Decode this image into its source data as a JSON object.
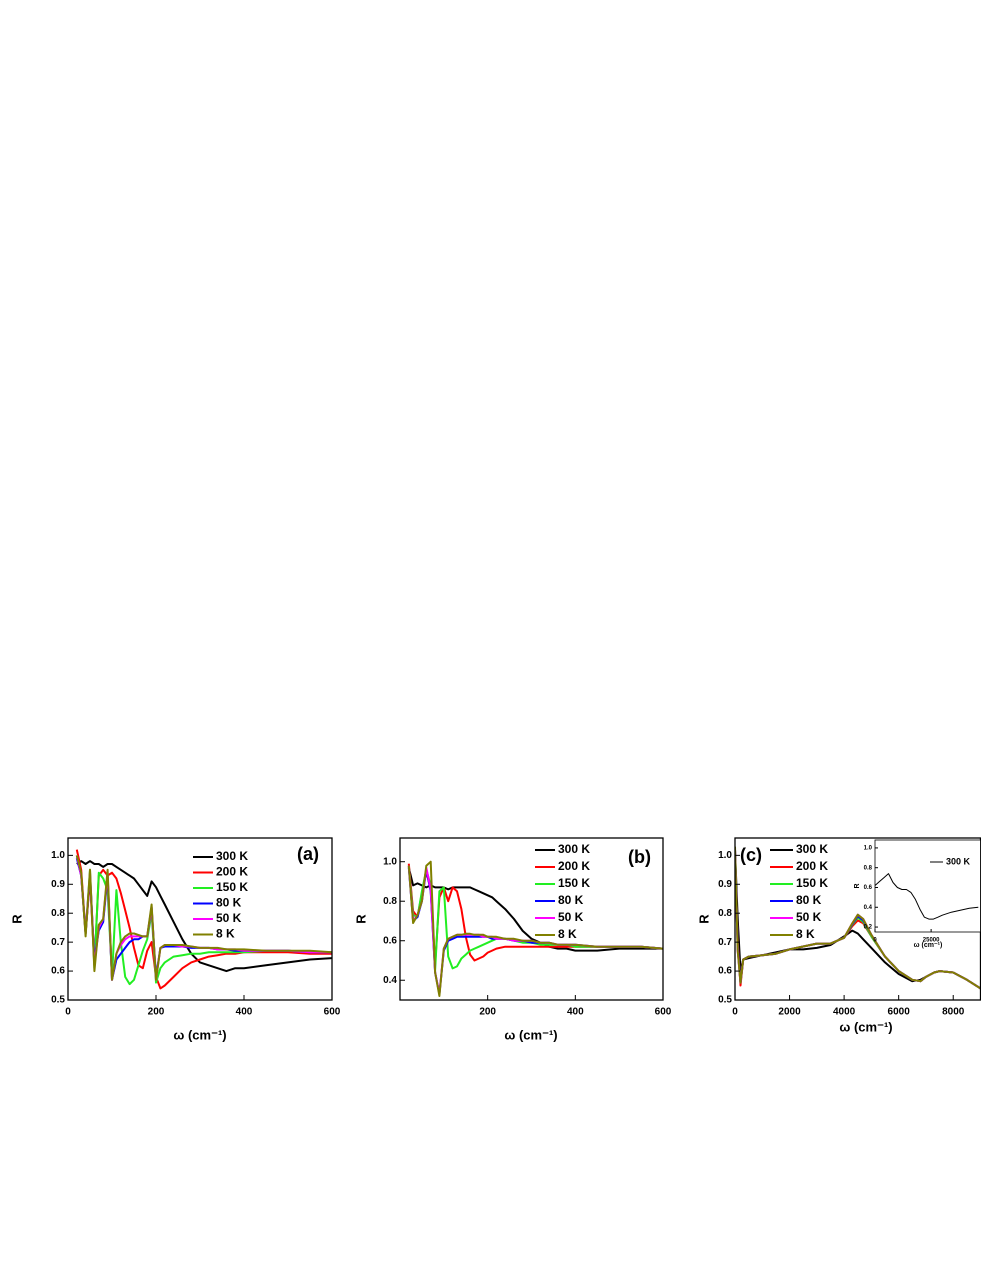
{
  "chart_data": [
    {
      "type": "line",
      "label": "(a)",
      "x_label": "ω (cm⁻¹)",
      "y_label": "R",
      "x": [
        20,
        30,
        40,
        50,
        60,
        70,
        80,
        90,
        100,
        110,
        120,
        130,
        140,
        150,
        160,
        170,
        180,
        190,
        200,
        210,
        220,
        240,
        260,
        280,
        300,
        320,
        340,
        360,
        380,
        400,
        450,
        500,
        550,
        600
      ],
      "series": [
        {
          "name": "300 K",
          "color": "#000000",
          "values": [
            0.97,
            0.98,
            0.97,
            0.98,
            0.97,
            0.97,
            0.96,
            0.97,
            0.97,
            0.96,
            0.95,
            0.94,
            0.93,
            0.92,
            0.9,
            0.88,
            0.86,
            0.91,
            0.89,
            0.86,
            0.83,
            0.77,
            0.71,
            0.66,
            0.63,
            0.62,
            0.61,
            0.6,
            0.61,
            0.61,
            0.62,
            0.63,
            0.64,
            0.645
          ]
        },
        {
          "name": "200 K",
          "color": "#ff0000",
          "values": [
            1.02,
            0.95,
            0.73,
            0.92,
            0.62,
            0.93,
            0.95,
            0.93,
            0.94,
            0.92,
            0.87,
            0.81,
            0.75,
            0.68,
            0.62,
            0.61,
            0.67,
            0.7,
            0.58,
            0.54,
            0.55,
            0.58,
            0.61,
            0.63,
            0.64,
            0.65,
            0.655,
            0.66,
            0.66,
            0.665,
            0.665,
            0.665,
            0.66,
            0.66
          ]
        },
        {
          "name": "150 K",
          "color": "#22ee22",
          "values": [
            1.0,
            0.93,
            0.73,
            0.95,
            0.61,
            0.94,
            0.92,
            0.88,
            0.58,
            0.88,
            0.7,
            0.58,
            0.555,
            0.57,
            0.62,
            0.67,
            0.71,
            0.8,
            0.56,
            0.61,
            0.63,
            0.65,
            0.655,
            0.66,
            0.66,
            0.665,
            0.665,
            0.665,
            0.665,
            0.665,
            0.67,
            0.67,
            0.665,
            0.665
          ]
        },
        {
          "name": "80 K",
          "color": "#0000ff",
          "values": [
            0.99,
            0.93,
            0.73,
            0.93,
            0.64,
            0.74,
            0.77,
            0.93,
            0.57,
            0.64,
            0.66,
            0.68,
            0.7,
            0.71,
            0.71,
            0.72,
            0.72,
            0.82,
            0.58,
            0.68,
            0.685,
            0.685,
            0.685,
            0.68,
            0.68,
            0.68,
            0.675,
            0.675,
            0.67,
            0.67,
            0.67,
            0.67,
            0.665,
            0.665
          ]
        },
        {
          "name": "50 K",
          "color": "#ff00ff",
          "values": [
            1.0,
            0.93,
            0.73,
            0.94,
            0.62,
            0.75,
            0.78,
            0.94,
            0.57,
            0.66,
            0.69,
            0.71,
            0.72,
            0.72,
            0.72,
            0.72,
            0.72,
            0.82,
            0.57,
            0.68,
            0.69,
            0.69,
            0.685,
            0.685,
            0.68,
            0.68,
            0.675,
            0.675,
            0.675,
            0.67,
            0.67,
            0.67,
            0.665,
            0.665
          ]
        },
        {
          "name": "8 K",
          "color": "#808000",
          "values": [
            1.0,
            0.94,
            0.72,
            0.95,
            0.6,
            0.76,
            0.78,
            0.95,
            0.57,
            0.66,
            0.7,
            0.72,
            0.73,
            0.73,
            0.725,
            0.72,
            0.72,
            0.83,
            0.57,
            0.68,
            0.69,
            0.69,
            0.69,
            0.685,
            0.68,
            0.68,
            0.68,
            0.675,
            0.675,
            0.675,
            0.67,
            0.67,
            0.67,
            0.665
          ]
        }
      ],
      "xlim": [
        0,
        600
      ],
      "ylim": [
        0.5,
        1.06
      ],
      "xticks": [
        0,
        200,
        400,
        600
      ],
      "yticks": [
        0.5,
        0.6,
        0.7,
        0.8,
        0.9,
        {
          "value": 1,
          "label": "1.0"
        }
      ]
    },
    {
      "type": "line",
      "label": "(b)",
      "x_label": "ω (cm⁻¹)",
      "y_label": "R",
      "x": [
        20,
        30,
        40,
        50,
        60,
        70,
        80,
        90,
        100,
        110,
        120,
        130,
        140,
        150,
        160,
        170,
        180,
        190,
        200,
        210,
        220,
        240,
        260,
        280,
        300,
        320,
        340,
        360,
        380,
        400,
        450,
        500,
        550,
        600
      ],
      "series": [
        {
          "name": "300 K",
          "color": "#000000",
          "values": [
            0.97,
            0.88,
            0.89,
            0.88,
            0.87,
            0.88,
            0.87,
            0.87,
            0.87,
            0.86,
            0.87,
            0.87,
            0.87,
            0.87,
            0.87,
            0.86,
            0.85,
            0.84,
            0.83,
            0.82,
            0.8,
            0.76,
            0.71,
            0.65,
            0.61,
            0.59,
            0.57,
            0.56,
            0.56,
            0.55,
            0.55,
            0.56,
            0.56,
            0.56
          ]
        },
        {
          "name": "200 K",
          "color": "#ff0000",
          "values": [
            0.99,
            0.75,
            0.72,
            0.84,
            0.95,
            0.86,
            0.48,
            0.82,
            0.87,
            0.8,
            0.87,
            0.85,
            0.76,
            0.62,
            0.53,
            0.5,
            0.51,
            0.52,
            0.54,
            0.55,
            0.56,
            0.57,
            0.57,
            0.57,
            0.57,
            0.57,
            0.57,
            0.57,
            0.57,
            0.57,
            0.57,
            0.57,
            0.57,
            0.56
          ]
        },
        {
          "name": "150 K",
          "color": "#22ee22",
          "values": [
            0.98,
            0.73,
            0.72,
            0.85,
            0.96,
            0.88,
            0.45,
            0.85,
            0.87,
            0.52,
            0.46,
            0.47,
            0.51,
            0.53,
            0.55,
            0.56,
            0.57,
            0.58,
            0.59,
            0.6,
            0.61,
            0.61,
            0.6,
            0.59,
            0.59,
            0.58,
            0.58,
            0.58,
            0.58,
            0.57,
            0.57,
            0.57,
            0.57,
            0.56
          ]
        },
        {
          "name": "80 K",
          "color": "#0000ff",
          "values": [
            0.97,
            0.7,
            0.72,
            0.8,
            0.96,
            0.85,
            0.44,
            0.33,
            0.55,
            0.6,
            0.61,
            0.62,
            0.62,
            0.62,
            0.62,
            0.62,
            0.62,
            0.62,
            0.62,
            0.61,
            0.61,
            0.61,
            0.6,
            0.6,
            0.59,
            0.59,
            0.59,
            0.58,
            0.58,
            0.58,
            0.57,
            0.57,
            0.57,
            0.56
          ]
        },
        {
          "name": "50 K",
          "color": "#ff00ff",
          "values": [
            0.98,
            0.7,
            0.73,
            0.8,
            0.97,
            0.86,
            0.44,
            0.33,
            0.56,
            0.61,
            0.62,
            0.63,
            0.63,
            0.63,
            0.63,
            0.63,
            0.63,
            0.62,
            0.62,
            0.62,
            0.61,
            0.61,
            0.6,
            0.6,
            0.6,
            0.59,
            0.59,
            0.58,
            0.58,
            0.58,
            0.57,
            0.57,
            0.57,
            0.56
          ]
        },
        {
          "name": "8 K",
          "color": "#808000",
          "values": [
            0.98,
            0.69,
            0.73,
            0.8,
            0.98,
            1.0,
            0.44,
            0.32,
            0.56,
            0.61,
            0.62,
            0.63,
            0.63,
            0.635,
            0.635,
            0.63,
            0.63,
            0.63,
            0.62,
            0.62,
            0.62,
            0.61,
            0.61,
            0.6,
            0.6,
            0.59,
            0.59,
            0.58,
            0.58,
            0.58,
            0.57,
            0.57,
            0.57,
            0.56
          ]
        }
      ],
      "xlim": [
        0,
        600
      ],
      "ylim": [
        0.3,
        1.12
      ],
      "xticks": [
        200,
        400,
        600
      ],
      "yticks": [
        0.4,
        0.6,
        0.8,
        {
          "value": 1,
          "label": "1.0"
        }
      ]
    },
    {
      "type": "line",
      "label": "(c)",
      "x_label": "ω (cm⁻¹)",
      "y_label": "R",
      "x": [
        0,
        100,
        200,
        300,
        500,
        1000,
        1500,
        2000,
        2500,
        3000,
        3500,
        4000,
        4300,
        4500,
        4700,
        5000,
        5500,
        6000,
        6500,
        6800,
        7000,
        7300,
        7500,
        8000,
        8500,
        9000
      ],
      "series": [
        {
          "name": "300 K",
          "color": "#000000",
          "values": [
            1.02,
            0.78,
            0.6,
            0.64,
            0.645,
            0.655,
            0.665,
            0.675,
            0.675,
            0.68,
            0.69,
            0.72,
            0.74,
            0.73,
            0.71,
            0.68,
            0.63,
            0.59,
            0.565,
            0.57,
            0.58,
            0.595,
            0.6,
            0.595,
            0.57,
            0.54
          ]
        },
        {
          "name": "200 K",
          "color": "#ff0000",
          "values": [
            1.0,
            0.7,
            0.55,
            0.64,
            0.65,
            0.655,
            0.66,
            0.675,
            0.685,
            0.695,
            0.695,
            0.715,
            0.755,
            0.775,
            0.765,
            0.72,
            0.65,
            0.6,
            0.57,
            0.565,
            0.58,
            0.595,
            0.6,
            0.595,
            0.57,
            0.54
          ]
        },
        {
          "name": "150 K",
          "color": "#22ee22",
          "values": [
            1.01,
            0.68,
            0.56,
            0.64,
            0.65,
            0.655,
            0.66,
            0.675,
            0.685,
            0.695,
            0.695,
            0.715,
            0.76,
            0.785,
            0.77,
            0.72,
            0.65,
            0.6,
            0.57,
            0.565,
            0.58,
            0.595,
            0.6,
            0.595,
            0.57,
            0.54
          ]
        },
        {
          "name": "80 K",
          "color": "#0000ff",
          "values": [
            1.02,
            0.68,
            0.56,
            0.64,
            0.65,
            0.655,
            0.66,
            0.675,
            0.685,
            0.695,
            0.695,
            0.715,
            0.762,
            0.79,
            0.775,
            0.725,
            0.65,
            0.6,
            0.57,
            0.565,
            0.58,
            0.595,
            0.6,
            0.595,
            0.57,
            0.54
          ]
        },
        {
          "name": "50 K",
          "color": "#ff00ff",
          "values": [
            1.02,
            0.67,
            0.56,
            0.64,
            0.65,
            0.655,
            0.66,
            0.675,
            0.685,
            0.695,
            0.695,
            0.715,
            0.765,
            0.795,
            0.78,
            0.725,
            0.65,
            0.6,
            0.57,
            0.565,
            0.58,
            0.595,
            0.6,
            0.595,
            0.57,
            0.54
          ]
        },
        {
          "name": "8 K",
          "color": "#808000",
          "values": [
            1.03,
            0.67,
            0.56,
            0.64,
            0.65,
            0.655,
            0.66,
            0.675,
            0.685,
            0.695,
            0.695,
            0.715,
            0.765,
            0.795,
            0.78,
            0.725,
            0.65,
            0.6,
            0.57,
            0.565,
            0.58,
            0.595,
            0.6,
            0.595,
            0.57,
            0.54
          ]
        }
      ],
      "xlim": [
        0,
        9000
      ],
      "ylim": [
        0.5,
        1.06
      ],
      "xticks": [
        0,
        2000,
        4000,
        6000,
        8000
      ],
      "yticks": [
        0.5,
        0.6,
        0.7,
        0.8,
        0.9,
        {
          "value": 1,
          "label": "1.0"
        }
      ]
    },
    {
      "type": "line",
      "x_label": "ω (cm⁻¹)",
      "y_label": "R",
      "x": [
        0,
        2000,
        4000,
        6000,
        8000,
        10000,
        12000,
        14000,
        16000,
        18000,
        20000,
        22000,
        24000,
        26000,
        28000,
        30000,
        34000,
        38000,
        42000,
        46000
      ],
      "series": [
        {
          "name": "300 K",
          "color": "#000000",
          "values": [
            0.62,
            0.66,
            0.7,
            0.74,
            0.65,
            0.6,
            0.58,
            0.58,
            0.55,
            0.48,
            0.38,
            0.3,
            0.28,
            0.28,
            0.3,
            0.32,
            0.35,
            0.37,
            0.39,
            0.4
          ]
        }
      ],
      "xlim": [
        0,
        47000
      ],
      "ylim": [
        0.15,
        1.08
      ],
      "xticks": [
        0,
        25000
      ],
      "yticks": [
        0.2,
        0.4,
        0.6,
        0.8,
        {
          "value": 1,
          "label": "1.0"
        }
      ]
    }
  ]
}
